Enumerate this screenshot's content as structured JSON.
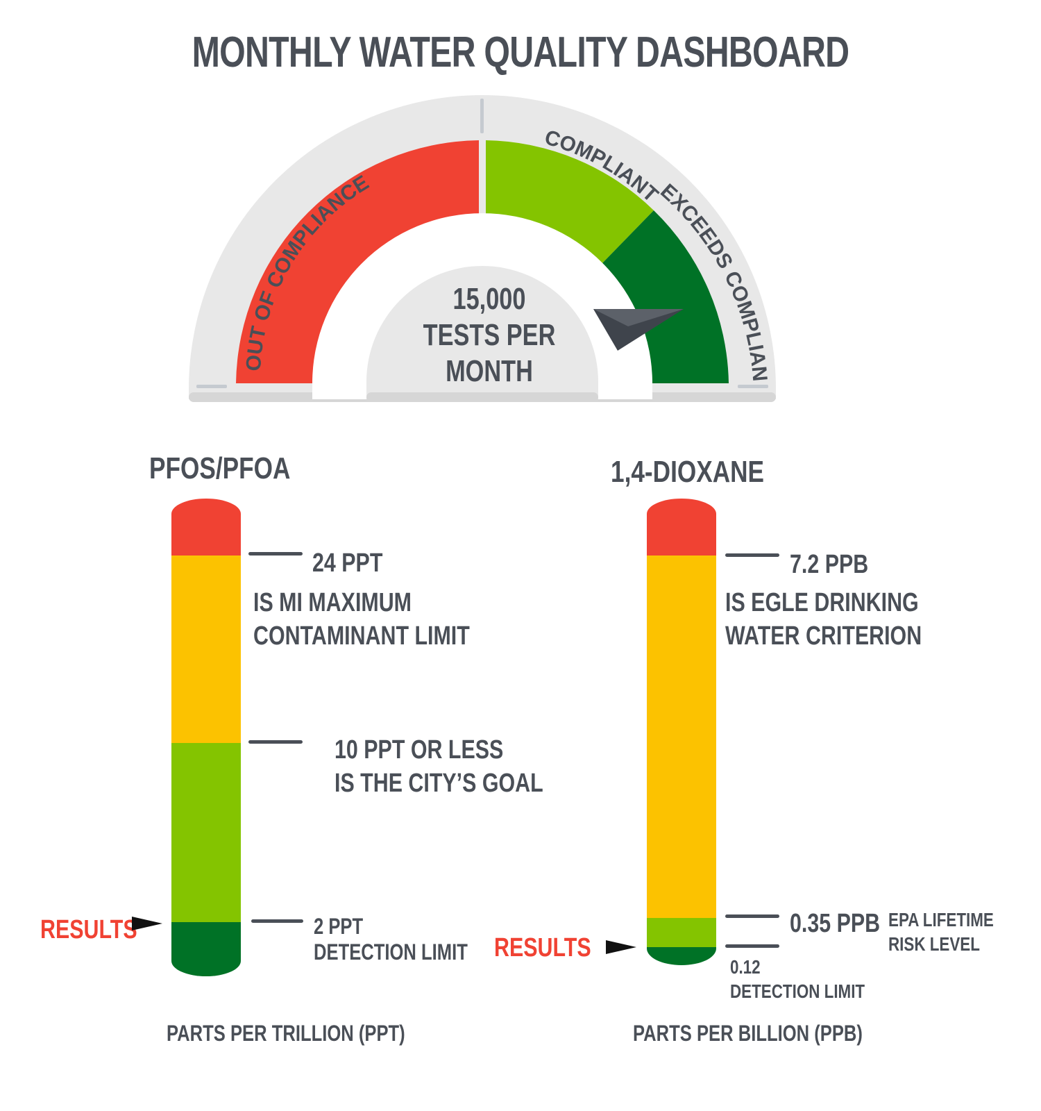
{
  "title": "MONTHLY WATER QUALITY DASHBOARD",
  "gauge": {
    "zones": [
      "OUT OF COMPLIANCE",
      "COMPLIANT",
      "EXCEEDS COMPLIANCE"
    ],
    "center_line1": "15,000",
    "center_line2": "TESTS PER",
    "center_line3": "MONTH",
    "needle_zone": "EXCEEDS COMPLIANCE"
  },
  "colors": {
    "red": "#f04233",
    "yellow": "#fcc200",
    "light_green": "#84c400",
    "dark_green": "#007226",
    "text": "#4a4f57",
    "gauge_bg": "#e8e8e8"
  },
  "pfos": {
    "title": "PFOS/PFOA",
    "label_24": "24 PPT",
    "desc_24_line1": "IS MI MAXIMUM",
    "desc_24_line2": "CONTAMINANT LIMIT",
    "label_10_line1": "10 PPT OR LESS",
    "label_10_line2": "IS THE CITY’S GOAL",
    "label_2": "2 PPT",
    "desc_2": "DETECTION LIMIT",
    "results": "RESULTS",
    "units": "PARTS PER TRILLION (PPT)"
  },
  "dioxane": {
    "title": "1,4-DIOXANE",
    "label_72": "7.2 PPB",
    "desc_72_line1": "IS EGLE DRINKING",
    "desc_72_line2": "WATER CRITERION",
    "label_035": "0.35 PPB",
    "desc_035_line1": "EPA LIFETIME",
    "desc_035_line2": "RISK LEVEL",
    "label_012": "0.12",
    "desc_012": "DETECTION LIMIT",
    "results": "RESULTS",
    "units": "PARTS PER BILLION (PPB)"
  }
}
